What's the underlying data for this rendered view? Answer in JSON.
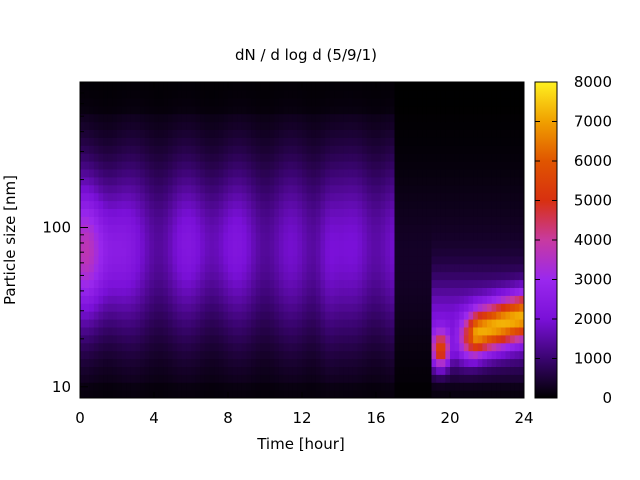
{
  "chart_data": {
    "type": "heatmap",
    "title": "dN / d log d (5/9/1)",
    "xlabel": "Time [hour]",
    "ylabel": "Particle size [nm]",
    "xlim": [
      0,
      24
    ],
    "ylim": [
      8.5,
      820
    ],
    "y_scale": "log",
    "x_ticks": [
      0,
      4,
      8,
      12,
      16,
      20,
      24
    ],
    "x_tick_labels": [
      "0",
      "4",
      "8",
      "12",
      "16",
      "20",
      "24"
    ],
    "y_ticks": [
      10,
      100
    ],
    "y_tick_labels": [
      "10",
      "100"
    ],
    "colorbar": {
      "min": 0,
      "max": 8000,
      "ticks": [
        0,
        1000,
        2000,
        3000,
        4000,
        5000,
        6000,
        7000,
        8000
      ],
      "tick_labels": [
        "0",
        "1000",
        "2000",
        "3000",
        "4000",
        "5000",
        "6000",
        "7000",
        "8000"
      ],
      "colormap": [
        "#000000",
        "#3a0470",
        "#7a10d8",
        "#9a28ee",
        "#c83aa0",
        "#d83010",
        "#e05500",
        "#f0a000",
        "#fff020"
      ]
    },
    "features": [
      {
        "description": "mode near 70 nm",
        "hours": [
          0,
          2
        ],
        "size_nm": 70,
        "value": 4200
      },
      {
        "description": "weak mode near 80 nm",
        "hours": [
          2,
          12
        ],
        "size_nm": 80,
        "value": 2500
      },
      {
        "description": "low concentration after front",
        "hours": [
          17,
          19
        ],
        "size_nm": 60,
        "value": 400
      },
      {
        "description": "growing mode",
        "hours": [
          19.5,
          24
        ],
        "size_nm": [
          20,
          40
        ],
        "value": 6500
      }
    ]
  }
}
